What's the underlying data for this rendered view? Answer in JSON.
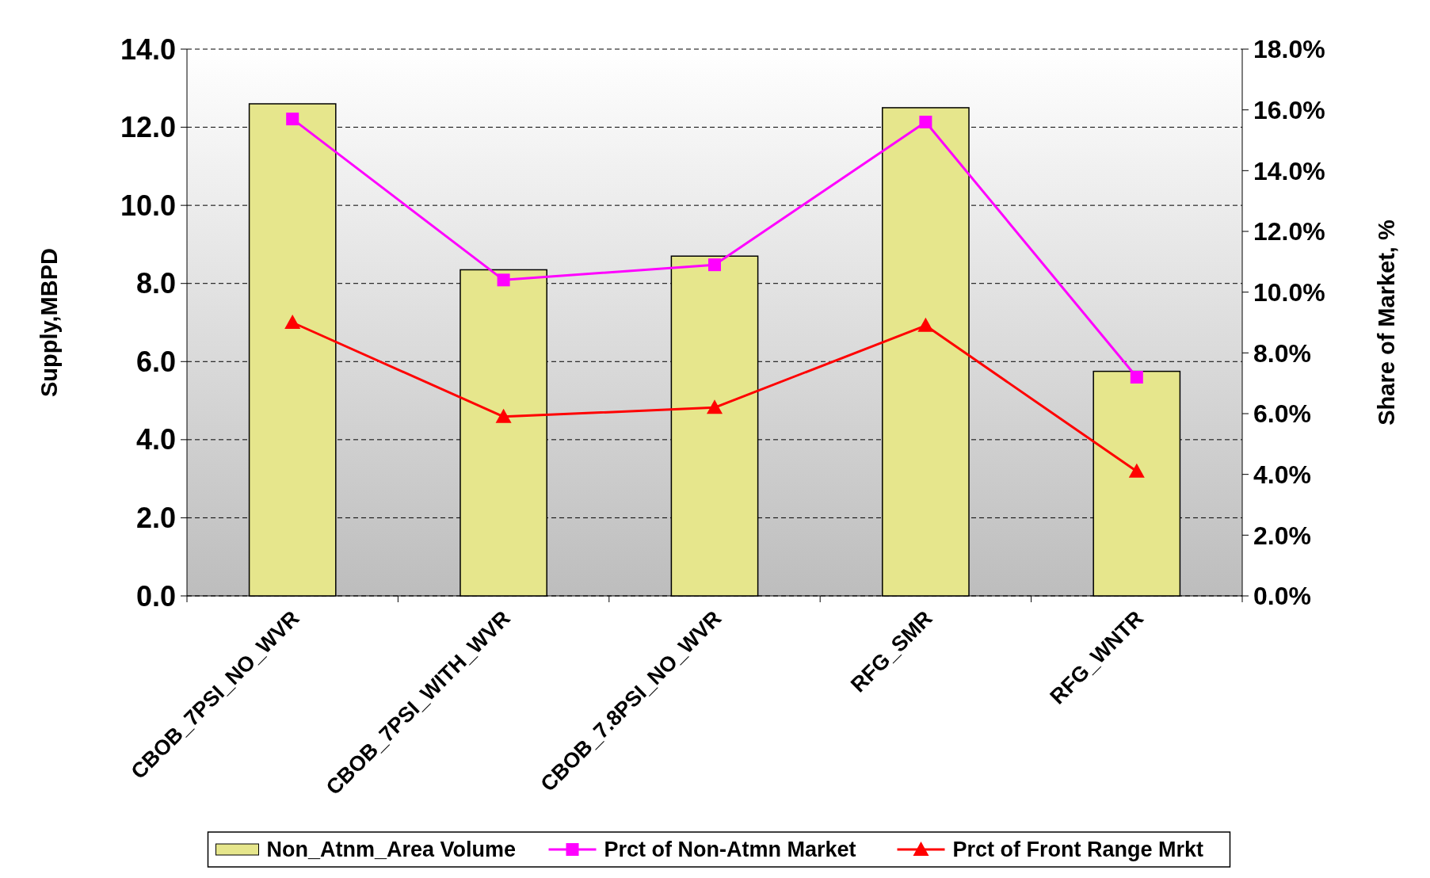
{
  "chart_data": {
    "type": "bar",
    "ylabel": "Supply,MBPD",
    "y2label": "Share of Market, %",
    "categories": [
      "CBOB_7PSI_NO_WVR",
      "CBOB_7PSI_WITH_WVR",
      "CBOB_7.8PSI_NO_WVR",
      "RFG_SMR",
      "RFG_WNTR"
    ],
    "series": [
      {
        "name": "Non_Atnm_Area Volume",
        "color": "#e6e68c",
        "values": [
          12.6,
          8.35,
          8.7,
          12.5,
          5.75
        ]
      },
      {
        "name": "Prct of Non-Atmn Market",
        "type": "line",
        "axis": "y2",
        "marker": "square",
        "color": "#ff00ff",
        "values": [
          15.7,
          10.4,
          10.9,
          15.6,
          7.2
        ]
      },
      {
        "name": "Prct of Front Range Mrkt",
        "type": "line",
        "axis": "y2",
        "marker": "triangle",
        "color": "#ff0000",
        "values": [
          9.0,
          5.9,
          6.2,
          8.9,
          4.1
        ]
      }
    ],
    "ylim": [
      0,
      14
    ],
    "yticks": [
      {
        "value": 0,
        "label": "0.0"
      },
      {
        "value": 2,
        "label": "2.0"
      },
      {
        "value": 4,
        "label": "4.0"
      },
      {
        "value": 6,
        "label": "6.0"
      },
      {
        "value": 8,
        "label": "8.0"
      },
      {
        "value": 10,
        "label": "10.0"
      },
      {
        "value": 12,
        "label": "12.0"
      },
      {
        "value": 14,
        "label": "14.0"
      }
    ],
    "y2lim": [
      0,
      18
    ],
    "y2ticks": [
      {
        "value": 0,
        "label": "0.0%"
      },
      {
        "value": 2,
        "label": "2.0%"
      },
      {
        "value": 4,
        "label": "4.0%"
      },
      {
        "value": 6,
        "label": "6.0%"
      },
      {
        "value": 8,
        "label": "8.0%"
      },
      {
        "value": 10,
        "label": "10.0%"
      },
      {
        "value": 12,
        "label": "12.0%"
      },
      {
        "value": 14,
        "label": "14.0%"
      },
      {
        "value": 16,
        "label": "16.0%"
      },
      {
        "value": 18,
        "label": "18.0%"
      }
    ],
    "grid": "y",
    "legend": "bottom"
  }
}
